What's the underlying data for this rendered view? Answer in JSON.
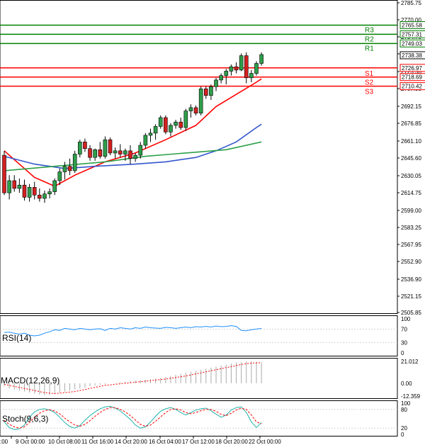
{
  "chart_data": {
    "type": "candlestick",
    "price_axis": {
      "ticks": [
        "2785.75",
        "2770.00",
        "2754.70",
        "2739.05",
        "2723.30",
        "2707.95",
        "2692.15",
        "2676.85",
        "2661.10",
        "2645.60",
        "2630.05",
        "2614.75",
        "2599.00",
        "2583.25",
        "2567.95",
        "2552.90",
        "2536.90",
        "2521.15",
        "2505.85"
      ],
      "range": [
        2505.85,
        2785.75
      ]
    },
    "price_labels": [
      {
        "value": "2765.58",
        "color": "#008000"
      },
      {
        "value": "2757.31",
        "color": "#008000"
      },
      {
        "value": "2749.03",
        "color": "#008000"
      },
      {
        "value": "2738.38",
        "color": "#000000"
      },
      {
        "value": "2726.97",
        "color": "#ff0000"
      },
      {
        "value": "2718.69",
        "color": "#ff0000"
      },
      {
        "value": "2710.42",
        "color": "#ff0000"
      }
    ],
    "levels": [
      {
        "name": "R3",
        "value": 2765.58,
        "color": "#008000"
      },
      {
        "name": "R2",
        "value": 2757.31,
        "color": "#008000"
      },
      {
        "name": "R1",
        "value": 2749.03,
        "color": "#008000"
      },
      {
        "name": "S1",
        "value": 2726.97,
        "color": "#ff0000"
      },
      {
        "name": "S2",
        "value": 2718.69,
        "color": "#ff0000"
      },
      {
        "name": "S3",
        "value": 2710.42,
        "color": "#ff0000"
      }
    ],
    "x_labels": [
      ":00",
      "9 Oct 00:00",
      "10 Oct 08:00",
      "11 Oct 16:00",
      "14 Oct 20:00",
      "16 Oct 04:00",
      "17 Oct 12:00",
      "18 Oct 20:00",
      "22 Oct 00:00"
    ],
    "candles": [
      [
        2648,
        2652,
        2612,
        2614
      ],
      [
        2614,
        2630,
        2608,
        2625
      ],
      [
        2625,
        2630,
        2615,
        2618
      ],
      [
        2618,
        2627,
        2614,
        2621
      ],
      [
        2621,
        2626,
        2607,
        2610
      ],
      [
        2610,
        2622,
        2606,
        2619
      ],
      [
        2619,
        2624,
        2608,
        2612
      ],
      [
        2612,
        2618,
        2606,
        2609
      ],
      [
        2609,
        2616,
        2605,
        2613
      ],
      [
        2613,
        2618,
        2609,
        2615
      ],
      [
        2615,
        2627,
        2612,
        2625
      ],
      [
        2625,
        2636,
        2621,
        2633
      ],
      [
        2633,
        2642,
        2626,
        2638
      ],
      [
        2638,
        2645,
        2630,
        2634
      ],
      [
        2634,
        2652,
        2632,
        2649
      ],
      [
        2649,
        2662,
        2646,
        2660
      ],
      [
        2660,
        2663,
        2651,
        2654
      ],
      [
        2654,
        2657,
        2643,
        2646
      ],
      [
        2646,
        2654,
        2643,
        2653
      ],
      [
        2653,
        2660,
        2645,
        2647
      ],
      [
        2647,
        2665,
        2645,
        2662
      ],
      [
        2662,
        2664,
        2648,
        2650
      ],
      [
        2650,
        2655,
        2645,
        2652
      ],
      [
        2652,
        2658,
        2646,
        2649
      ],
      [
        2649,
        2654,
        2643,
        2652
      ],
      [
        2652,
        2657,
        2640,
        2645
      ],
      [
        2645,
        2650,
        2642,
        2648
      ],
      [
        2648,
        2660,
        2645,
        2657
      ],
      [
        2657,
        2668,
        2654,
        2666
      ],
      [
        2666,
        2672,
        2660,
        2668
      ],
      [
        2668,
        2676,
        2662,
        2674
      ],
      [
        2674,
        2684,
        2672,
        2682
      ],
      [
        2682,
        2684,
        2667,
        2669
      ],
      [
        2669,
        2677,
        2665,
        2675
      ],
      [
        2675,
        2680,
        2672,
        2678
      ],
      [
        2678,
        2682,
        2671,
        2673
      ],
      [
        2673,
        2690,
        2670,
        2688
      ],
      [
        2688,
        2694,
        2682,
        2691
      ],
      [
        2691,
        2693,
        2684,
        2686
      ],
      [
        2686,
        2710,
        2684,
        2708
      ],
      [
        2708,
        2710,
        2699,
        2702
      ],
      [
        2702,
        2712,
        2698,
        2710
      ],
      [
        2710,
        2718,
        2706,
        2716
      ],
      [
        2716,
        2722,
        2713,
        2720
      ],
      [
        2720,
        2726,
        2712,
        2724
      ],
      [
        2724,
        2730,
        2720,
        2728
      ],
      [
        2728,
        2732,
        2722,
        2725
      ],
      [
        2725,
        2740,
        2724,
        2738
      ],
      [
        2738,
        2741,
        2713,
        2718
      ],
      [
        2718,
        2725,
        2714,
        2722
      ],
      [
        2722,
        2733,
        2720,
        2731
      ],
      [
        2731,
        2741,
        2729,
        2739
      ]
    ],
    "moving_averages": [
      {
        "color": "#ff0000",
        "values": [
          [
            0,
            2652
          ],
          [
            6,
            2628
          ],
          [
            10,
            2620
          ],
          [
            14,
            2630
          ],
          [
            20,
            2642
          ],
          [
            26,
            2650
          ],
          [
            32,
            2662
          ],
          [
            38,
            2675
          ],
          [
            42,
            2692
          ],
          [
            46,
            2703
          ],
          [
            50,
            2714
          ],
          [
            51,
            2717
          ]
        ]
      },
      {
        "color": "#3355cc",
        "values": [
          [
            0,
            2647
          ],
          [
            6,
            2640
          ],
          [
            12,
            2636
          ],
          [
            18,
            2638
          ],
          [
            26,
            2640
          ],
          [
            32,
            2642
          ],
          [
            38,
            2646
          ],
          [
            42,
            2652
          ],
          [
            46,
            2660
          ],
          [
            50,
            2673
          ],
          [
            51,
            2676
          ]
        ]
      },
      {
        "color": "#2ea04a",
        "values": [
          [
            0,
            2634
          ],
          [
            10,
            2638
          ],
          [
            20,
            2642
          ],
          [
            28,
            2647
          ],
          [
            36,
            2650
          ],
          [
            44,
            2653
          ],
          [
            51,
            2660
          ]
        ]
      }
    ],
    "rsi": {
      "title": "RSI(14)",
      "ticks": [
        "100",
        "70",
        "30",
        "0"
      ],
      "values": [
        60,
        61,
        58,
        55,
        58,
        52,
        50,
        52,
        58,
        62,
        68,
        66,
        72,
        70,
        68,
        72,
        70,
        68,
        70,
        71,
        66,
        72,
        70,
        74,
        72,
        70,
        74,
        72,
        76,
        74,
        73,
        72,
        75,
        74,
        72,
        74,
        76,
        74,
        77,
        76,
        78,
        76,
        79,
        77,
        78,
        80,
        78,
        66,
        65,
        68,
        70,
        72
      ]
    },
    "macd": {
      "title": "MACD(12,26,9)",
      "ticks": [
        "21.012",
        "0.00",
        "-12.359"
      ],
      "bars": [
        -3,
        -5,
        -6,
        -7,
        -8,
        -9,
        -10,
        -11,
        -11.5,
        -11,
        -10,
        -9,
        -8,
        -7,
        -6,
        -5,
        -4,
        -3,
        -2,
        -1.5,
        -1,
        0,
        0.5,
        1,
        1.5,
        2,
        2.5,
        3,
        3.5,
        4,
        4.5,
        5,
        6,
        7,
        8,
        9,
        10,
        11,
        12,
        13,
        14,
        15,
        16,
        17,
        18,
        19,
        20,
        20.5,
        21,
        21,
        20.5,
        20
      ],
      "signal": [
        -1,
        -2,
        -3,
        -4,
        -5,
        -6,
        -7,
        -8,
        -9,
        -9.5,
        -10,
        -9.5,
        -9,
        -8.5,
        -8,
        -7,
        -6,
        -5,
        -4,
        -3,
        -2,
        -1.5,
        -1,
        -0.5,
        0,
        0.5,
        1,
        1.5,
        2,
        2.5,
        3,
        3.5,
        4,
        4.8,
        5.5,
        6.3,
        7,
        8,
        9,
        10,
        11,
        12,
        13,
        14,
        15,
        16,
        17,
        18,
        18.8,
        19.3,
        19.6,
        19.8
      ]
    },
    "stoch": {
      "title": "Stoch(9,6,3)",
      "ticks": [
        "100",
        "80",
        "20",
        "0"
      ],
      "k": [
        40,
        22,
        15,
        18,
        30,
        55,
        72,
        80,
        82,
        78,
        70,
        55,
        38,
        25,
        20,
        28,
        45,
        60,
        72,
        82,
        88,
        90,
        84,
        75,
        62,
        48,
        30,
        20,
        24,
        40,
        58,
        74,
        82,
        86,
        80,
        70,
        62,
        70,
        78,
        82,
        84,
        76,
        65,
        55,
        62,
        78,
        86,
        88,
        70,
        40,
        22,
        38
      ],
      "d": [
        45,
        32,
        24,
        20,
        24,
        38,
        55,
        68,
        76,
        79,
        75,
        66,
        52,
        40,
        30,
        26,
        32,
        44,
        58,
        70,
        80,
        86,
        86,
        80,
        72,
        60,
        46,
        32,
        26,
        30,
        42,
        56,
        70,
        80,
        82,
        78,
        70,
        66,
        70,
        76,
        80,
        80,
        74,
        64,
        60,
        68,
        78,
        84,
        80,
        62,
        40,
        34
      ]
    }
  }
}
